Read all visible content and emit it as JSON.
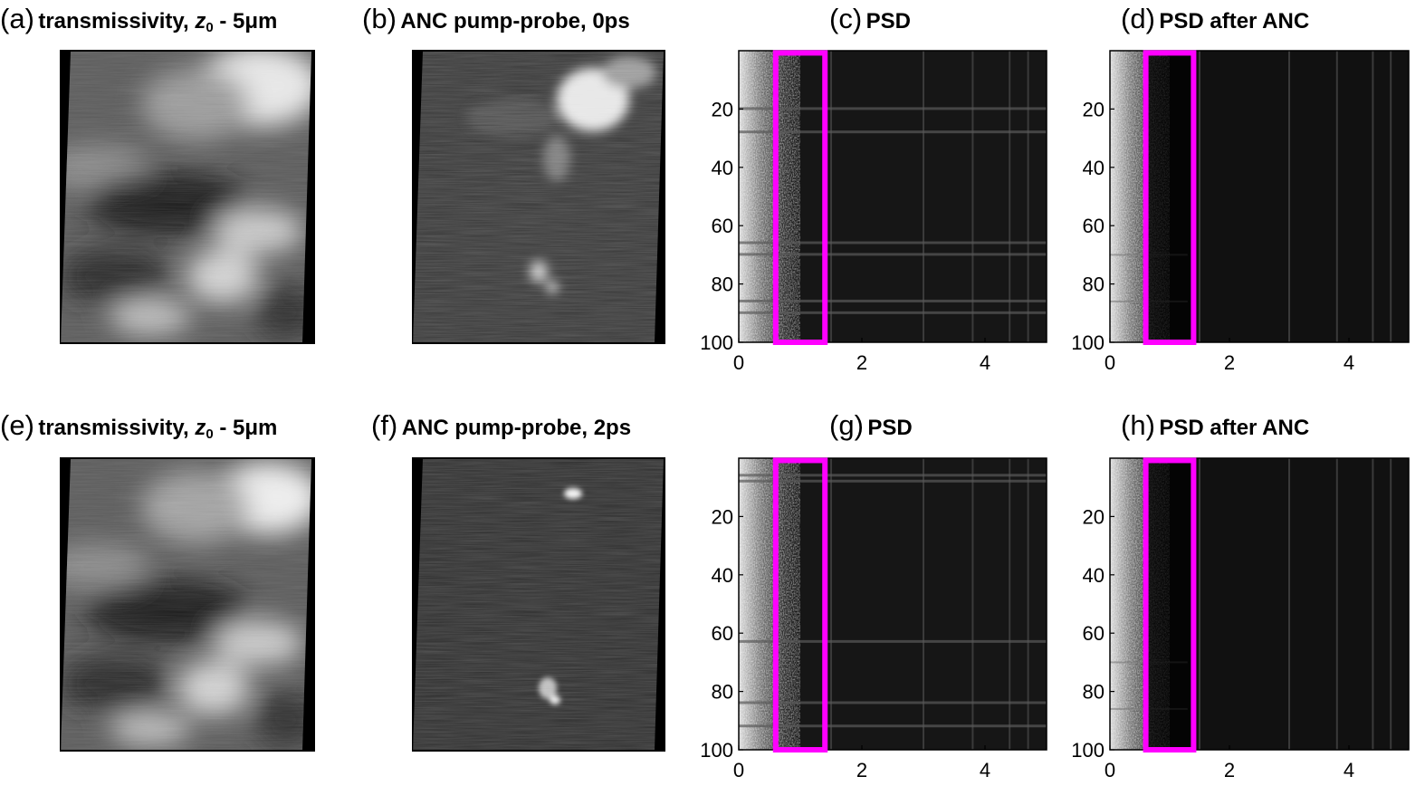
{
  "figure": {
    "panels": [
      {
        "id": "a",
        "tag": "(a)",
        "title": "transmissivity, ",
        "z": "z",
        "zsub": "0",
        "suffix": " - 5μm",
        "kind": "transmissivity"
      },
      {
        "id": "b",
        "tag": "(b)",
        "title": "ANC pump-probe, 0ps",
        "kind": "pumpprobe"
      },
      {
        "id": "c",
        "tag": "(c)",
        "title": "PSD",
        "kind": "psd"
      },
      {
        "id": "d",
        "tag": "(d)",
        "title": "PSD after ANC",
        "kind": "psd"
      },
      {
        "id": "e",
        "tag": "(e)",
        "title": "transmissivity, ",
        "z": "z",
        "zsub": "0",
        "suffix": " - 5μm",
        "kind": "transmissivity"
      },
      {
        "id": "f",
        "tag": "(f)",
        "title": "ANC pump-probe, 2ps",
        "kind": "pumpprobe"
      },
      {
        "id": "g",
        "tag": "(g)",
        "title": "PSD",
        "kind": "psd"
      },
      {
        "id": "h",
        "tag": "(h)",
        "title": "PSD after ANC",
        "kind": "psd"
      }
    ],
    "psd_axes": {
      "y_ticks": [
        "20",
        "40",
        "60",
        "80",
        "100"
      ],
      "x_ticks": [
        "0",
        "2",
        "4"
      ],
      "x_range": [
        0,
        5
      ],
      "y_range": [
        0,
        100
      ]
    },
    "highlight": {
      "color": "#ff00ff",
      "x_range": [
        0.6,
        1.4
      ],
      "y_range": [
        2,
        100
      ]
    }
  }
}
